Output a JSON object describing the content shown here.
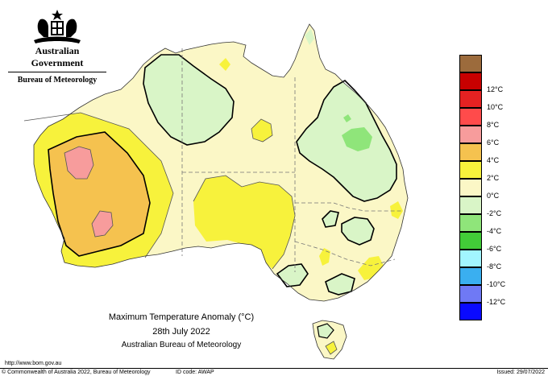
{
  "header": {
    "government": "Australian Government",
    "bureau": "Bureau of Meteorology"
  },
  "map": {
    "title": "Maximum Temperature Anomaly (°C)",
    "date": "28th July 2022",
    "source": "Australian Bureau of Meteorology"
  },
  "legend": {
    "items": [
      {
        "label": "",
        "color": "#9c6b3c"
      },
      {
        "label": "12°C",
        "color": "#c80000"
      },
      {
        "label": "10°C",
        "color": "#e52222"
      },
      {
        "label": "8°C",
        "color": "#ff4b4b"
      },
      {
        "label": "6°C",
        "color": "#f79c9c"
      },
      {
        "label": "4°C",
        "color": "#f5c24f"
      },
      {
        "label": "2°C",
        "color": "#f7f23c"
      },
      {
        "label": "0°C",
        "color": "#fbf7c6"
      },
      {
        "label": "-2°C",
        "color": "#d9f5c7"
      },
      {
        "label": "-4°C",
        "color": "#8fe57a"
      },
      {
        "label": "-6°C",
        "color": "#42cc38"
      },
      {
        "label": "-8°C",
        "color": "#a2f5ff"
      },
      {
        "label": "-10°C",
        "color": "#3aaff0"
      },
      {
        "label": "-12°C",
        "color": "#6f79f5"
      },
      {
        "label": "",
        "color": "#0a0aff"
      }
    ]
  },
  "footer": {
    "url": "http://www.bom.gov.au",
    "copyright": "© Commonwealth of Australia 2022, Bureau of Meteorology",
    "id_code": "ID code: AWAP",
    "issued": "Issued: 29/07/2022"
  }
}
